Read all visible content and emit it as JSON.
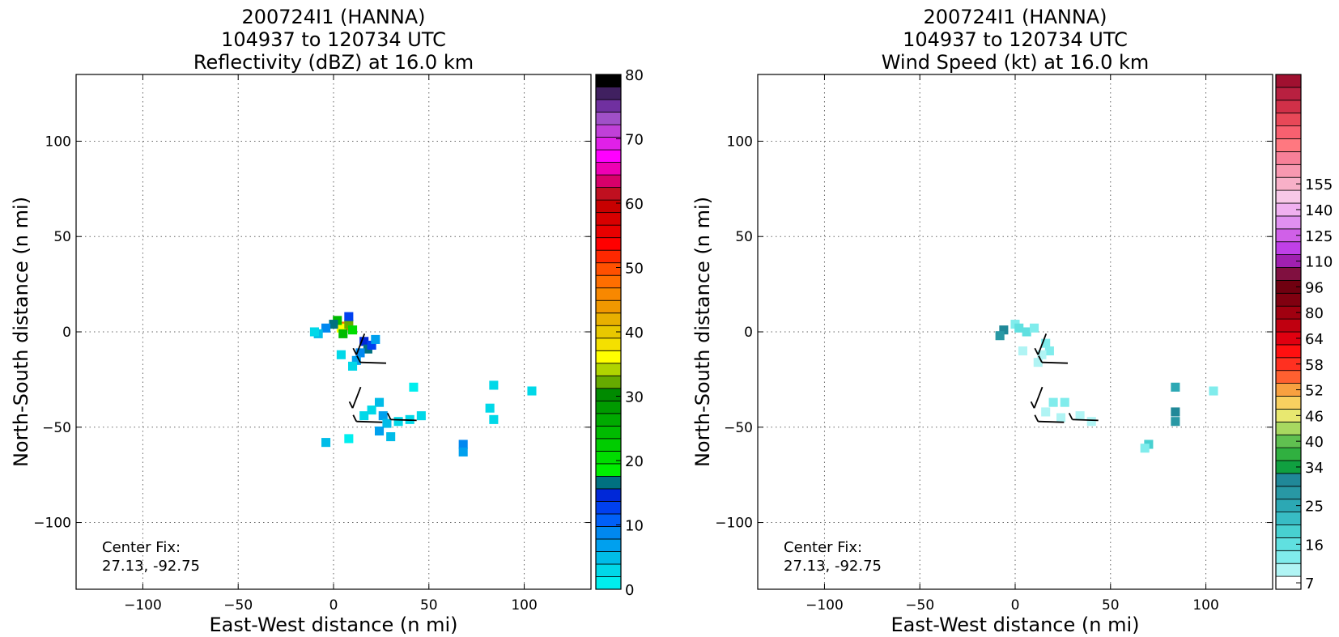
{
  "chart_data": [
    {
      "type": "heatmap",
      "title": [
        "200724I1 (HANNA)",
        "104937 to 120734 UTC",
        "Reflectivity (dBZ) at 16.0 km"
      ],
      "xlabel": "East-West distance (n mi)",
      "ylabel": "North-South distance (n mi)",
      "xlim": [
        -135,
        135
      ],
      "ylim": [
        -135,
        135
      ],
      "xticks": [
        -100,
        -50,
        0,
        50,
        100
      ],
      "yticks": [
        -100,
        -50,
        0,
        50,
        100
      ],
      "xtick_labels": [
        "−100",
        "−50",
        "0",
        "50",
        "100"
      ],
      "ytick_labels": [
        "−100",
        "−50",
        "0",
        "50",
        "100"
      ],
      "grid": true,
      "annotation": [
        "Center Fix:",
        "27.13, -92.75"
      ],
      "colorbar": {
        "min": 0,
        "max": 80,
        "step": 2.5,
        "tick_values": [
          0,
          10,
          20,
          30,
          40,
          50,
          60,
          70,
          80
        ],
        "tick_labels": [
          "0",
          "10",
          "20",
          "30",
          "40",
          "50",
          "60",
          "70",
          "80"
        ],
        "colors": [
          "#00eeee",
          "#00d8e8",
          "#00bce8",
          "#00a0ee",
          "#0088f0",
          "#0060f8",
          "#0040f0",
          "#0028d8",
          "#007080",
          "#00ee00",
          "#00dd00",
          "#00cc00",
          "#00bb00",
          "#00aa00",
          "#009a00",
          "#008a00",
          "#66aa00",
          "#b0d400",
          "#ffff00",
          "#f4e000",
          "#e8c800",
          "#e8b000",
          "#f09800",
          "#f88800",
          "#ff6e00",
          "#ff5000",
          "#ff2800",
          "#ff0000",
          "#e80000",
          "#d80000",
          "#c80000",
          "#c01020",
          "#d8006a",
          "#ee00b4",
          "#ff00ff",
          "#e020e8",
          "#c040d8",
          "#a050c8",
          "#7030a0",
          "#402060"
        ],
        "top_color": "#000000"
      },
      "cells": [
        {
          "x": 6,
          "y": 3,
          "v": 24
        },
        {
          "x": 4,
          "y": 2,
          "v": 18
        },
        {
          "x": 8,
          "y": 4,
          "v": 16
        },
        {
          "x": 2,
          "y": 6,
          "v": 12
        },
        {
          "x": 10,
          "y": 1,
          "v": 10
        },
        {
          "x": 5,
          "y": -1,
          "v": 12
        },
        {
          "x": 0,
          "y": 4,
          "v": 8
        },
        {
          "x": 8,
          "y": 8,
          "v": 6
        },
        {
          "x": -4,
          "y": 2,
          "v": 4
        },
        {
          "x": -8,
          "y": -1,
          "v": 2
        },
        {
          "x": -10,
          "y": 0,
          "v": 1
        },
        {
          "x": 16,
          "y": -5,
          "v": 7
        },
        {
          "x": 18,
          "y": -9,
          "v": 8
        },
        {
          "x": 14,
          "y": -11,
          "v": 4
        },
        {
          "x": 20,
          "y": -7,
          "v": 6
        },
        {
          "x": 12,
          "y": -15,
          "v": 3
        },
        {
          "x": 22,
          "y": -4,
          "v": 3
        },
        {
          "x": 10,
          "y": -18,
          "v": 1
        },
        {
          "x": 4,
          "y": -12,
          "v": 1
        },
        {
          "x": 24,
          "y": -37,
          "v": 2
        },
        {
          "x": 20,
          "y": -41,
          "v": 1
        },
        {
          "x": 26,
          "y": -44,
          "v": 3
        },
        {
          "x": 28,
          "y": -48,
          "v": 2
        },
        {
          "x": 24,
          "y": -52,
          "v": 3
        },
        {
          "x": 30,
          "y": -55,
          "v": 2
        },
        {
          "x": 34,
          "y": -47,
          "v": 1
        },
        {
          "x": 16,
          "y": -44,
          "v": 1
        },
        {
          "x": 40,
          "y": -46,
          "v": 1
        },
        {
          "x": 46,
          "y": -44,
          "v": 1
        },
        {
          "x": 68,
          "y": -59,
          "v": 4
        },
        {
          "x": 68,
          "y": -63,
          "v": 3
        },
        {
          "x": 84,
          "y": -28,
          "v": 1
        },
        {
          "x": 82,
          "y": -40,
          "v": 1
        },
        {
          "x": 84,
          "y": -46,
          "v": 1
        },
        {
          "x": -4,
          "y": -58,
          "v": 2
        },
        {
          "x": 104,
          "y": -31,
          "v": 1
        },
        {
          "x": 42,
          "y": -29,
          "v": 0
        },
        {
          "x": 8,
          "y": -56,
          "v": 0
        }
      ],
      "barbs": [
        {
          "x": 12,
          "y": -12,
          "dir": "N"
        },
        {
          "x": 14,
          "y": -16,
          "dir": "W"
        },
        {
          "x": 10,
          "y": -40,
          "dir": "N"
        },
        {
          "x": 12,
          "y": -47,
          "dir": "W"
        },
        {
          "x": 30,
          "y": -46,
          "dir": "W"
        }
      ]
    },
    {
      "type": "heatmap",
      "title": [
        "200724I1 (HANNA)",
        "104937 to 120734 UTC",
        "Wind Speed (kt) at 16.0 km"
      ],
      "xlabel": "East-West distance (n mi)",
      "ylabel": "North-South distance (n mi)",
      "xlim": [
        -135,
        135
      ],
      "ylim": [
        -135,
        135
      ],
      "xticks": [
        -100,
        -50,
        0,
        50,
        100
      ],
      "yticks": [
        -100,
        -50,
        0,
        50,
        100
      ],
      "xtick_labels": [
        "−100",
        "−50",
        "0",
        "50",
        "100"
      ],
      "ytick_labels": [
        "−100",
        "−50",
        "0",
        "50",
        "100"
      ],
      "grid": true,
      "annotation": [
        "Center Fix:",
        "27.13, -92.75"
      ],
      "colorbar": {
        "tick_labels": [
          "7",
          "16",
          "25",
          "34",
          "40",
          "46",
          "52",
          "58",
          "64",
          "80",
          "96",
          "110",
          "125",
          "140",
          "155"
        ],
        "tick_bins": [
          0,
          3,
          6,
          9,
          11,
          13,
          15,
          17,
          19,
          21,
          23,
          25,
          27,
          29,
          31
        ],
        "colors": [
          "#ffffff",
          "#b0f4f4",
          "#80ecec",
          "#60e0e0",
          "#48d0d0",
          "#38bcc4",
          "#2ca8b4",
          "#2898a4",
          "#208898",
          "#10a040",
          "#30b040",
          "#60c050",
          "#a8d860",
          "#e8e870",
          "#f8d060",
          "#f8a040",
          "#ff6030",
          "#ff3020",
          "#ff1010",
          "#e00010",
          "#c00010",
          "#a00010",
          "#800010",
          "#700010",
          "#801040",
          "#a020b0",
          "#c040e8",
          "#d060e8",
          "#e090f0",
          "#f0b0f0",
          "#f8c8e8",
          "#f8b0c8",
          "#f898b0",
          "#f88098",
          "#ff7880",
          "#f86070",
          "#e84858",
          "#d03048",
          "#b82040",
          "#a01030"
        ]
      },
      "cells": [
        {
          "x": 0,
          "y": 4,
          "v": 2
        },
        {
          "x": 2,
          "y": 2,
          "v": 3
        },
        {
          "x": -6,
          "y": 1,
          "v": 8
        },
        {
          "x": -8,
          "y": -2,
          "v": 7
        },
        {
          "x": 6,
          "y": 0,
          "v": 3
        },
        {
          "x": 10,
          "y": 2,
          "v": 2
        },
        {
          "x": 16,
          "y": -6,
          "v": 2
        },
        {
          "x": 18,
          "y": -10,
          "v": 2
        },
        {
          "x": 14,
          "y": -12,
          "v": 1
        },
        {
          "x": 4,
          "y": -10,
          "v": 1
        },
        {
          "x": 12,
          "y": -16,
          "v": 1
        },
        {
          "x": 20,
          "y": -37,
          "v": 2
        },
        {
          "x": 26,
          "y": -37,
          "v": 2
        },
        {
          "x": 16,
          "y": -42,
          "v": 1
        },
        {
          "x": 24,
          "y": -45,
          "v": 1
        },
        {
          "x": 34,
          "y": -44,
          "v": 1
        },
        {
          "x": 40,
          "y": -47,
          "v": 1
        },
        {
          "x": 46,
          "y": -46,
          "v": 0
        },
        {
          "x": 70,
          "y": -59,
          "v": 4
        },
        {
          "x": 68,
          "y": -61,
          "v": 2
        },
        {
          "x": 84,
          "y": -42,
          "v": 8
        },
        {
          "x": 84,
          "y": -47,
          "v": 7
        },
        {
          "x": 84,
          "y": -29,
          "v": 6
        },
        {
          "x": 104,
          "y": -31,
          "v": 2
        }
      ],
      "barbs": [
        {
          "x": 12,
          "y": -12,
          "dir": "N"
        },
        {
          "x": 14,
          "y": -16,
          "dir": "W"
        },
        {
          "x": 10,
          "y": -40,
          "dir": "N"
        },
        {
          "x": 12,
          "y": -47,
          "dir": "W"
        },
        {
          "x": 30,
          "y": -46,
          "dir": "W"
        }
      ]
    }
  ]
}
